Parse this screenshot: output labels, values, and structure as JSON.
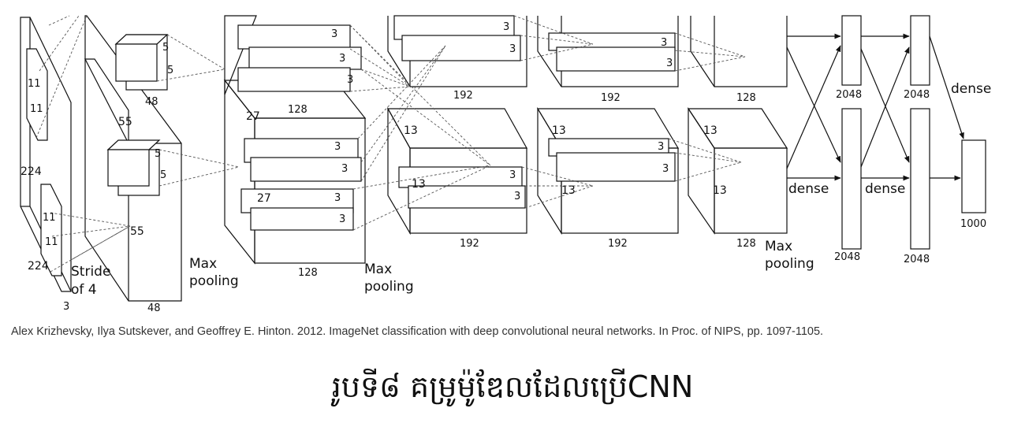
{
  "labels": {
    "in_11a": "11",
    "in_11b": "11",
    "in_224a": "224",
    "in_11c": "11",
    "in_11d": "11",
    "in_224b": "224",
    "stride1": "Stride",
    "stride2": "of 4",
    "in_3": "3",
    "c1_5a": "5",
    "c1_5b": "5",
    "c1_48a": "48",
    "c1_55a": "55",
    "c1_5c": "5",
    "c1_5d": "5",
    "c1_55b": "55",
    "c1_48b": "48",
    "mp1a": "Max",
    "mp1b": "pooling",
    "c2_3a": "3",
    "c2_3b": "3",
    "c2_3c": "3",
    "c2_128a": "128",
    "c2_27a": "27",
    "c2_3d": "3",
    "c2_3e": "3",
    "c2_27b": "27",
    "c2_3f": "3",
    "c2_3g": "3",
    "c2_128b": "128",
    "mp2a": "Max",
    "mp2b": "pooling",
    "c3_3a": "3",
    "c3_3b": "3",
    "c3_192a": "192",
    "c3_13a": "13",
    "c3_13b": "13",
    "c3_3c": "3",
    "c3_3d": "3",
    "c3_192b": "192",
    "c4_3a": "3",
    "c4_3b": "3",
    "c4_192a": "192",
    "c4_13a": "13",
    "c4_3c": "3",
    "c4_13b": "13",
    "c4_3d": "3",
    "c4_192b": "192",
    "c5_128a": "128",
    "c5_13a": "13",
    "c5_13b": "13",
    "c5_128b": "128",
    "mp3a": "Max",
    "mp3b": "pooling",
    "fc_2048a": "2048",
    "fc_2048b": "2048",
    "fc_dense_top": "dense",
    "fc_dense1": "dense",
    "fc_dense2": "dense",
    "fc_2048c": "2048",
    "fc_2048d": "2048",
    "fc_1000": "1000"
  },
  "citation": "Alex Krizhevsky, Ilya Sutskever, and Geoffrey E. Hinton. 2012. ImageNet classification with deep convolutional neural networks. In Proc. of NIPS, pp. 1097-1105.",
  "caption": "រូបទី៨ គម្រូម៉ូឌែលដែលប្រើCNN"
}
